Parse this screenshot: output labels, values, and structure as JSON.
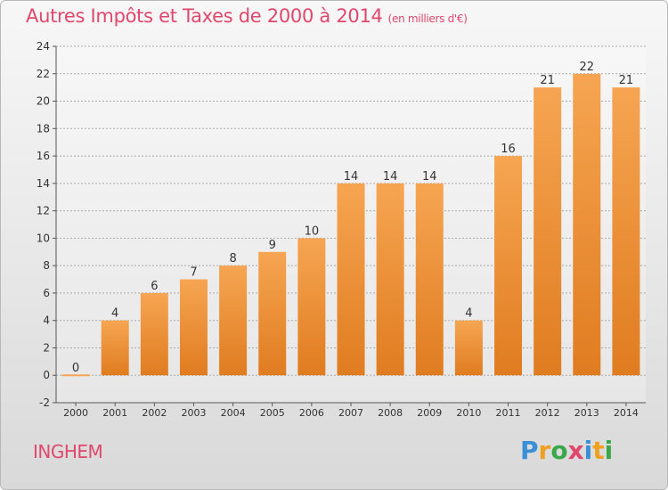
{
  "title": "Autres Impôts et Taxes de 2000 à 2014",
  "subtitle": "(en milliers d'€)",
  "entity": "INGHEM",
  "logo": {
    "letters": [
      "P",
      "r",
      "o",
      "x",
      "i",
      "t",
      "i"
    ],
    "colors": [
      "#3a8fd6",
      "#f0a020",
      "#3aa84a",
      "#e0476d",
      "#3a8fd6",
      "#f0a020",
      "#3aa84a"
    ]
  },
  "colors": {
    "bar_top": "#f6a552",
    "bar_bottom": "#e07c20",
    "title": "#e0476d"
  },
  "chart_data": {
    "type": "bar",
    "categories": [
      "2000",
      "2001",
      "2002",
      "2003",
      "2004",
      "2005",
      "2006",
      "2007",
      "2008",
      "2009",
      "2010",
      "2011",
      "2012",
      "2013",
      "2014"
    ],
    "values": [
      0,
      4,
      6,
      7,
      8,
      9,
      10,
      14,
      14,
      14,
      4,
      16,
      21,
      22,
      21
    ],
    "ylim": [
      -2,
      24
    ],
    "yticks": [
      -2,
      0,
      2,
      4,
      6,
      8,
      10,
      12,
      14,
      16,
      18,
      20,
      22,
      24
    ],
    "grid": true
  }
}
